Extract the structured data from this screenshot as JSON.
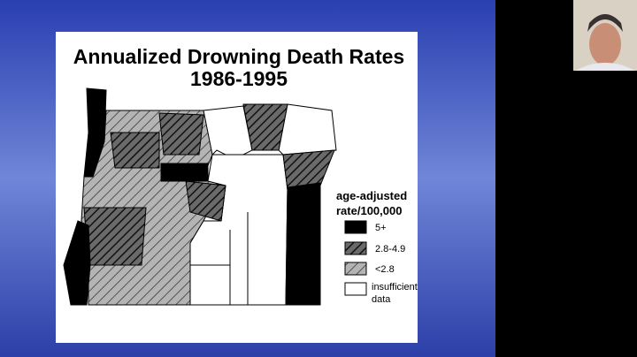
{
  "slide": {
    "title": [
      "Annualized Drowning Death Rates",
      "1986-1995"
    ],
    "legend": {
      "title": [
        "age-adjusted",
        "rate/100,000"
      ],
      "items": [
        {
          "label": "5+"
        },
        {
          "label": "2.8-4.9"
        },
        {
          "label": "<2.8"
        },
        {
          "label": [
            "insufficient",
            "data"
          ]
        }
      ]
    }
  }
}
